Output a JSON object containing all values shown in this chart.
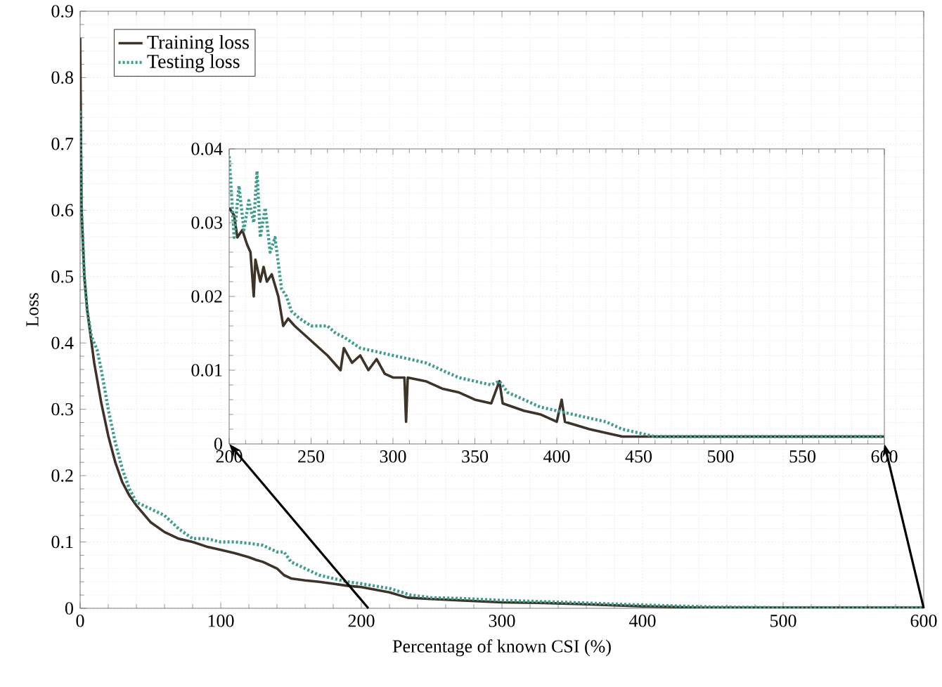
{
  "chart_data": [
    {
      "type": "line",
      "xlabel": "Percentage of known CSI (%)",
      "ylabel": "Loss",
      "xlim": [
        0,
        600
      ],
      "ylim": [
        0,
        0.9
      ],
      "xticks": [
        0,
        100,
        200,
        300,
        400,
        500,
        600
      ],
      "yticks": [
        0,
        0.1,
        0.2,
        0.3,
        0.4,
        0.5,
        0.6,
        0.7,
        0.8,
        0.9
      ],
      "grid": true,
      "legend": "top left",
      "marker": "none",
      "series": [
        {
          "name": "Training loss",
          "color": "#3d3328",
          "line_style": "solid",
          "x": [
            0,
            1,
            3,
            5,
            10,
            15,
            20,
            25,
            30,
            35,
            40,
            50,
            60,
            70,
            80,
            90,
            100,
            110,
            120,
            125,
            130,
            140,
            145,
            150,
            160,
            170,
            180,
            190,
            200,
            220,
            233,
            250,
            270,
            300,
            330,
            360,
            400,
            440,
            500,
            600
          ],
          "values": [
            0.86,
            0.6,
            0.5,
            0.45,
            0.37,
            0.31,
            0.26,
            0.22,
            0.19,
            0.17,
            0.155,
            0.13,
            0.115,
            0.105,
            0.1,
            0.093,
            0.088,
            0.083,
            0.077,
            0.073,
            0.07,
            0.06,
            0.05,
            0.045,
            0.042,
            0.04,
            0.037,
            0.034,
            0.032,
            0.024,
            0.016,
            0.014,
            0.012,
            0.009,
            0.008,
            0.006,
            0.003,
            0.001,
            0.001,
            0.001
          ]
        },
        {
          "name": "Testing loss",
          "color": "#3a9e8c",
          "line_style": "dotted",
          "x": [
            0,
            1,
            3,
            5,
            8,
            12,
            15,
            20,
            25,
            30,
            35,
            40,
            45,
            50,
            60,
            70,
            80,
            90,
            100,
            110,
            120,
            130,
            140,
            145,
            150,
            160,
            170,
            180,
            190,
            200,
            220,
            235,
            250,
            270,
            300,
            330,
            360,
            400,
            450,
            500,
            600
          ],
          "values": [
            0.75,
            0.6,
            0.5,
            0.45,
            0.41,
            0.39,
            0.36,
            0.3,
            0.25,
            0.21,
            0.18,
            0.16,
            0.155,
            0.15,
            0.14,
            0.12,
            0.105,
            0.105,
            0.1,
            0.1,
            0.098,
            0.095,
            0.085,
            0.085,
            0.07,
            0.06,
            0.05,
            0.045,
            0.04,
            0.037,
            0.03,
            0.02,
            0.016,
            0.015,
            0.012,
            0.01,
            0.008,
            0.005,
            0.002,
            0.001,
            0.001
          ]
        }
      ]
    },
    {
      "type": "line",
      "xlim": [
        200,
        600
      ],
      "ylim": [
        0,
        0.04
      ],
      "xticks": [
        200,
        250,
        300,
        350,
        400,
        450,
        500,
        550,
        600
      ],
      "yticks": [
        0,
        0.01,
        0.02,
        0.03,
        0.04
      ],
      "grid": true,
      "marker": "none",
      "series": [
        {
          "color": "#3d3328",
          "line_style": "solid",
          "x": [
            200,
            203,
            205,
            208,
            211,
            213,
            215,
            216,
            219,
            221,
            223,
            226,
            230,
            233,
            236,
            240,
            245,
            250,
            255,
            260,
            268,
            270,
            275,
            280,
            285,
            290,
            295,
            300,
            307,
            308,
            309,
            320,
            330,
            340,
            350,
            360,
            365,
            367,
            380,
            390,
            400,
            403,
            405,
            420,
            430,
            440,
            450,
            500,
            600
          ],
          "values": [
            0.032,
            0.031,
            0.028,
            0.029,
            0.027,
            0.026,
            0.02,
            0.025,
            0.022,
            0.024,
            0.022,
            0.023,
            0.02,
            0.016,
            0.017,
            0.016,
            0.015,
            0.014,
            0.013,
            0.012,
            0.01,
            0.013,
            0.011,
            0.012,
            0.01,
            0.0115,
            0.0095,
            0.009,
            0.009,
            0.003,
            0.009,
            0.0085,
            0.0075,
            0.007,
            0.006,
            0.0055,
            0.0085,
            0.0055,
            0.0045,
            0.004,
            0.003,
            0.006,
            0.003,
            0.002,
            0.0015,
            0.001,
            0.001,
            0.001,
            0.001
          ]
        },
        {
          "color": "#3a9e8c",
          "line_style": "dotted",
          "x": [
            200,
            203,
            206,
            209,
            212,
            215,
            217,
            219,
            222,
            225,
            228,
            232,
            235,
            238,
            243,
            250,
            260,
            265,
            270,
            280,
            290,
            300,
            310,
            320,
            330,
            340,
            350,
            360,
            365,
            370,
            380,
            390,
            400,
            410,
            420,
            430,
            440,
            450,
            460,
            500,
            600
          ],
          "values": [
            0.039,
            0.028,
            0.035,
            0.029,
            0.033,
            0.03,
            0.037,
            0.028,
            0.032,
            0.026,
            0.028,
            0.021,
            0.02,
            0.018,
            0.017,
            0.016,
            0.016,
            0.015,
            0.0145,
            0.013,
            0.0125,
            0.012,
            0.0115,
            0.011,
            0.01,
            0.009,
            0.0085,
            0.008,
            0.0085,
            0.007,
            0.006,
            0.005,
            0.0045,
            0.004,
            0.0035,
            0.003,
            0.002,
            0.0015,
            0.001,
            0.001,
            0.001
          ]
        }
      ]
    }
  ]
}
